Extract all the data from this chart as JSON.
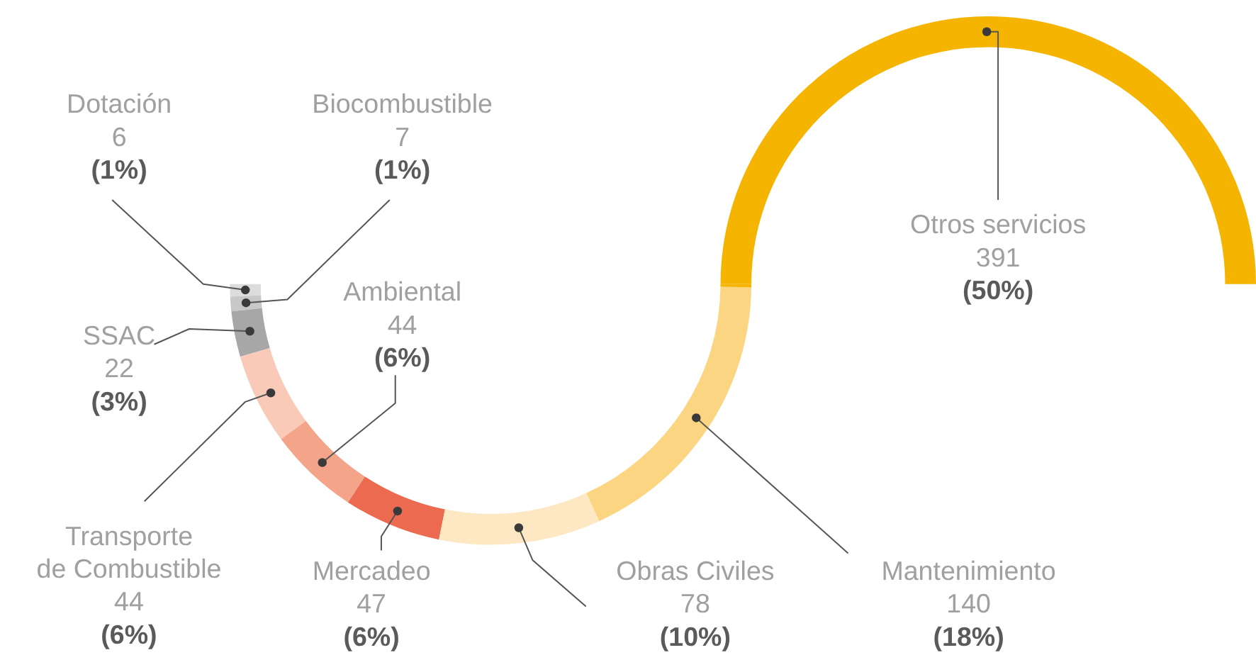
{
  "chart_data": {
    "type": "other",
    "categories": [
      "Dotación",
      "Biocombustible",
      "SSAC",
      "Transporte de Combustible",
      "Ambiental",
      "Mercadeo",
      "Obras Civiles",
      "Mantenimiento",
      "Otros servicios"
    ],
    "values": [
      6,
      7,
      22,
      44,
      44,
      47,
      78,
      140,
      391
    ],
    "colors": [
      "#dcdcdc",
      "#c8c8c8",
      "#a7a7a8",
      "#f9cab7",
      "#f4a489",
      "#ec6b50",
      "#fee8c3",
      "#fcd582",
      "#f5b400"
    ],
    "data_labels": true,
    "annotations": [
      "(1%)",
      "(1%)",
      "(3%)",
      "(6%)",
      "(6%)",
      "(6%)",
      "(10%)",
      "(18%)",
      "(50%)"
    ]
  }
}
